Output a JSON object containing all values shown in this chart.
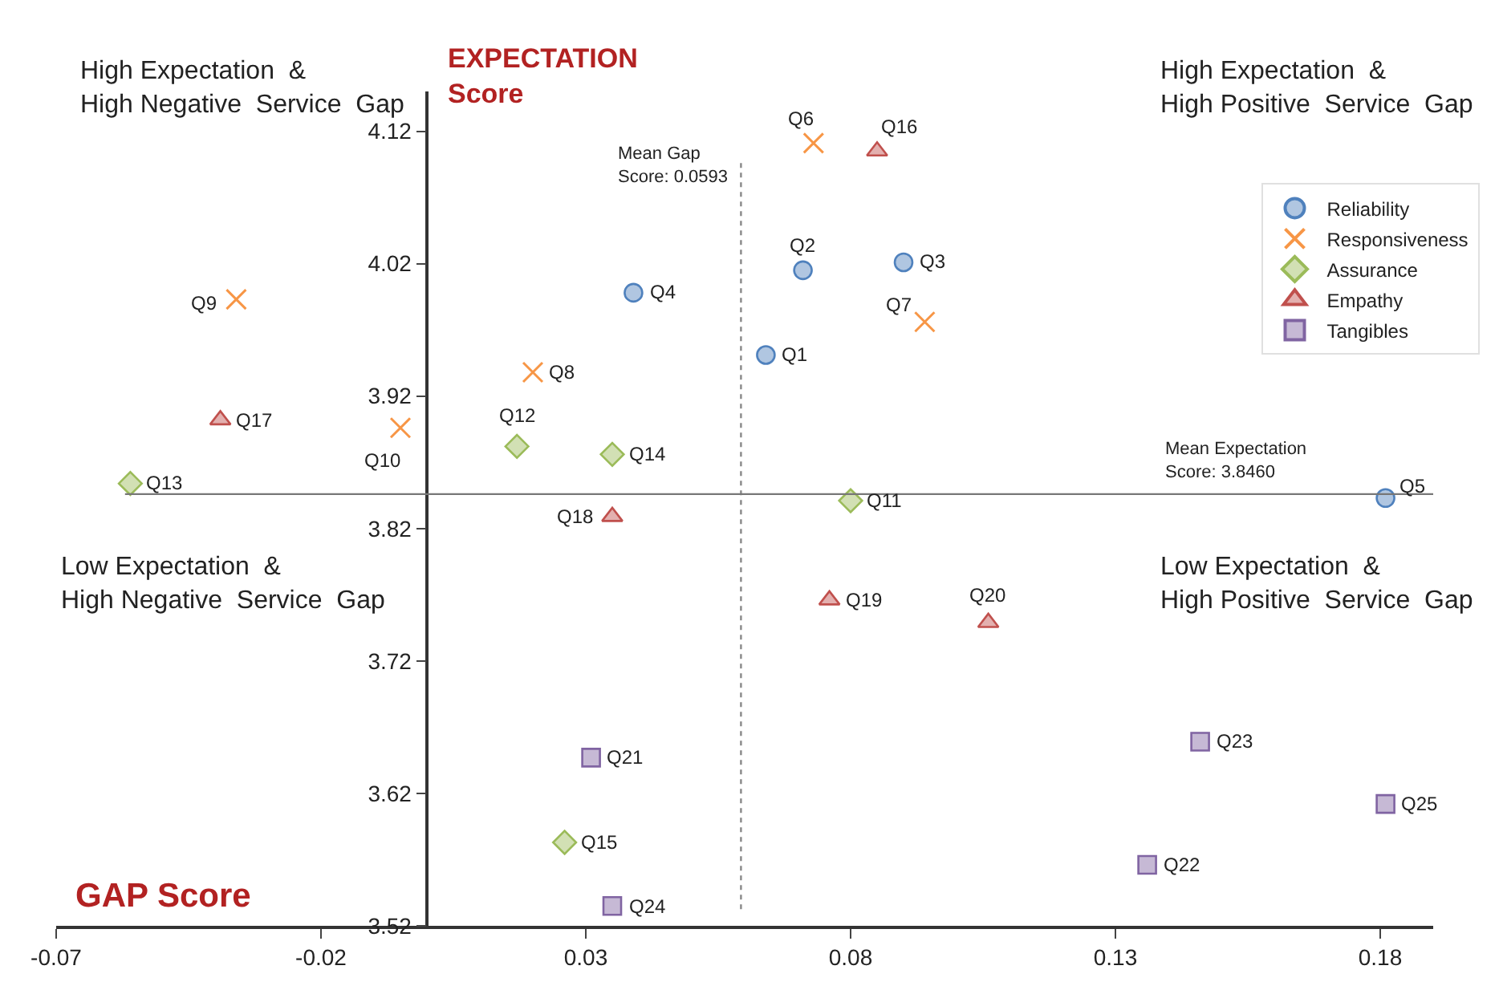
{
  "chart_data": {
    "type": "scatter",
    "xlabel": "GAP Score",
    "ylabel": "EXPECTATION\nScore",
    "xlim": [
      -0.07,
      0.19
    ],
    "xticks": [
      -0.07,
      -0.02,
      0.03,
      0.08,
      0.13,
      0.18
    ],
    "ylim": [
      3.52,
      4.15
    ],
    "yticks": [
      3.52,
      3.62,
      3.72,
      3.82,
      3.92,
      4.02,
      4.12
    ],
    "legend": "top right",
    "series": [
      {
        "name": "Reliability",
        "color": "#4f81bd",
        "marker": "circle",
        "x": [
          0.064,
          0.071,
          0.09,
          0.039,
          0.181
        ],
        "values": [
          3.951,
          4.015,
          4.021,
          3.998,
          3.843
        ]
      },
      {
        "name": "Responsiveness",
        "color": "#f79646",
        "marker": "cross",
        "x": [
          0.073,
          0.094,
          0.02,
          -0.036,
          -0.005
        ],
        "values": [
          4.111,
          3.976,
          3.938,
          3.993,
          3.896
        ]
      },
      {
        "name": "Assurance",
        "color": "#9bbb59",
        "marker": "diamond",
        "x": [
          0.08,
          0.017,
          -0.056,
          0.035,
          0.026
        ],
        "values": [
          3.841,
          3.882,
          3.854,
          3.876,
          3.583
        ]
      },
      {
        "name": "Empathy",
        "color": "#c0504d",
        "marker": "triangle",
        "x": [
          0.085,
          -0.039,
          0.035,
          0.076,
          0.106
        ],
        "values": [
          4.105,
          3.902,
          3.829,
          3.766,
          3.749
        ]
      },
      {
        "name": "Tangibles",
        "color": "#8064a2",
        "marker": "square",
        "x": [
          0.031,
          0.136,
          0.146,
          0.035,
          0.181
        ],
        "values": [
          3.647,
          3.566,
          3.659,
          3.535,
          3.612
        ]
      }
    ],
    "ref_lines": [
      {
        "axis": "x",
        "value": 0.0593,
        "label": "Mean Gap\nScore: 0.0593",
        "color": "#888888",
        "line_style": "dotted"
      },
      {
        "axis": "y",
        "value": 3.846,
        "label": "Mean Expectation\nScore: 3.8460",
        "color": "#777777",
        "line_style": "solid"
      }
    ],
    "annotations": [
      "High Expectation  &\nHigh Negative  Service  Gap",
      "High Expectation  &\nHigh Positive  Service  Gap",
      "Low Expectation  &\nHigh Negative  Service  Gap",
      "Low Expectation  &\nHigh Positive  Service  Gap",
      {
        "text": "Q1",
        "x": 0.064,
        "y": 3.951
      },
      {
        "text": "Q2",
        "x": 0.071,
        "y": 4.015
      },
      {
        "text": "Q3",
        "x": 0.09,
        "y": 4.021
      },
      {
        "text": "Q4",
        "x": 0.039,
        "y": 3.998
      },
      {
        "text": "Q5",
        "x": 0.181,
        "y": 3.843
      },
      {
        "text": "Q6",
        "x": 0.073,
        "y": 4.111
      },
      {
        "text": "Q7",
        "x": 0.094,
        "y": 3.976
      },
      {
        "text": "Q8",
        "x": 0.02,
        "y": 3.938
      },
      {
        "text": "Q9",
        "x": -0.036,
        "y": 3.993
      },
      {
        "text": "Q10",
        "x": -0.005,
        "y": 3.896
      },
      {
        "text": "Q11",
        "x": 0.08,
        "y": 3.841
      },
      {
        "text": "Q12",
        "x": 0.017,
        "y": 3.882
      },
      {
        "text": "Q13",
        "x": -0.056,
        "y": 3.854
      },
      {
        "text": "Q14",
        "x": 0.035,
        "y": 3.876
      },
      {
        "text": "Q15",
        "x": 0.026,
        "y": 3.583
      },
      {
        "text": "Q16",
        "x": 0.085,
        "y": 4.105
      },
      {
        "text": "Q17",
        "x": -0.039,
        "y": 3.902
      },
      {
        "text": "Q18",
        "x": 0.035,
        "y": 3.829
      },
      {
        "text": "Q19",
        "x": 0.076,
        "y": 3.766
      },
      {
        "text": "Q20",
        "x": 0.106,
        "y": 3.749
      },
      {
        "text": "Q21",
        "x": 0.031,
        "y": 3.647
      },
      {
        "text": "Q22",
        "x": 0.136,
        "y": 3.566
      },
      {
        "text": "Q23",
        "x": 0.146,
        "y": 3.659
      },
      {
        "text": "Q24",
        "x": 0.035,
        "y": 3.535
      },
      {
        "text": "Q25",
        "x": 0.181,
        "y": 3.612
      }
    ]
  }
}
